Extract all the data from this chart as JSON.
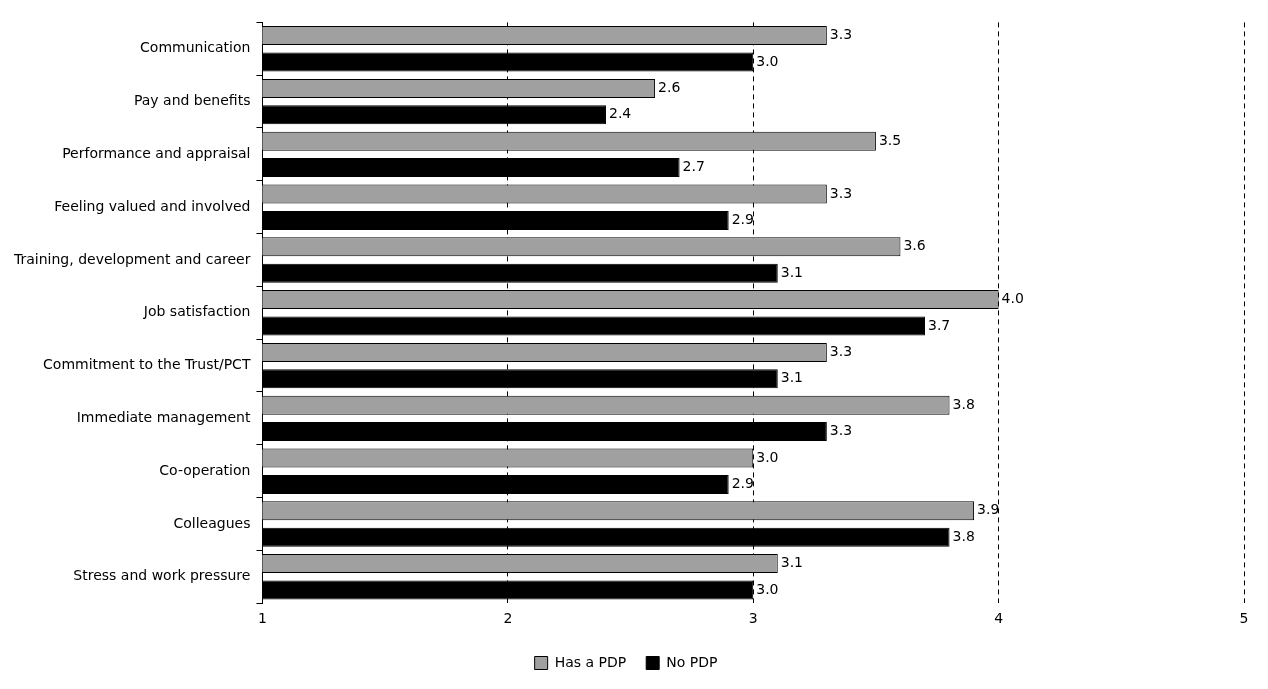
{
  "chart_data": {
    "type": "bar",
    "orientation": "horizontal",
    "categories": [
      "Communication",
      "Pay and benefits",
      "Performance and appraisal",
      "Feeling valued and involved",
      "Training, development and career",
      "Job satisfaction",
      "Commitment to the Trust/PCT",
      "Immediate management",
      "Co-operation",
      "Colleagues",
      "Stress and work pressure"
    ],
    "series": [
      {
        "name": "Has a PDP",
        "color": "#a0a0a0",
        "values": [
          3.3,
          2.6,
          3.5,
          3.3,
          3.6,
          4.0,
          3.3,
          3.8,
          3.0,
          3.9,
          3.1
        ],
        "value_labels": [
          "3.3",
          "2.6",
          "3.5",
          "3.3",
          "3.6",
          "4.0",
          "3.3",
          "3.8",
          "3.0",
          "3.9",
          "3.1"
        ]
      },
      {
        "name": "No PDP",
        "color": "#000000",
        "values": [
          3.0,
          2.4,
          2.7,
          2.9,
          3.1,
          3.7,
          3.1,
          3.3,
          2.9,
          3.8,
          3.0
        ],
        "value_labels": [
          "3.0",
          "2.4",
          "2.7",
          "2.9",
          "3.1",
          "3.7",
          "3.1",
          "3.3",
          "2.9",
          "3.8",
          "3.0"
        ]
      }
    ],
    "xlim": [
      1,
      5
    ],
    "xticks": [
      1,
      2,
      3,
      4,
      5
    ],
    "grid": "x",
    "legend": "bottom"
  }
}
